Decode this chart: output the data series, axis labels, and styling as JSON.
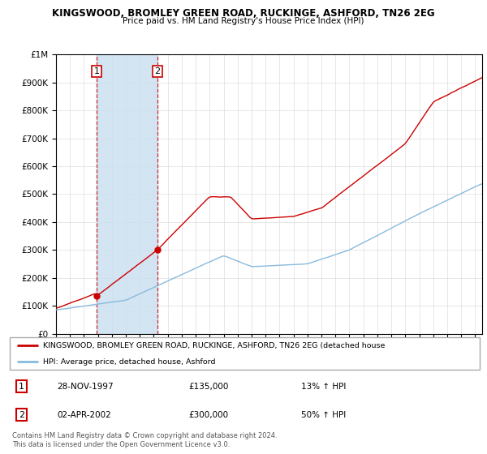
{
  "title": "KINGSWOOD, BROMLEY GREEN ROAD, RUCKINGE, ASHFORD, TN26 2EG",
  "subtitle": "Price paid vs. HM Land Registry's House Price Index (HPI)",
  "sale1_date": "28-NOV-1997",
  "sale1_price": 135000,
  "sale1_hpi": "13% ↑ HPI",
  "sale1_year": 1997.91,
  "sale2_date": "02-APR-2002",
  "sale2_price": 300000,
  "sale2_hpi": "50% ↑ HPI",
  "sale2_year": 2002.25,
  "legend_line1": "KINGSWOOD, BROMLEY GREEN ROAD, RUCKINGE, ASHFORD, TN26 2EG (detached house",
  "legend_line2": "HPI: Average price, detached house, Ashford",
  "footer": "Contains HM Land Registry data © Crown copyright and database right 2024.\nThis data is licensed under the Open Government Licence v3.0.",
  "hpi_color": "#88bbdd",
  "price_color": "#cc0000",
  "shade_color": "#cce0f0",
  "dashed_color": "#cc0000",
  "ylim_max": 1000000,
  "ylim_min": 0,
  "xmin": 1995,
  "xmax": 2025.5
}
